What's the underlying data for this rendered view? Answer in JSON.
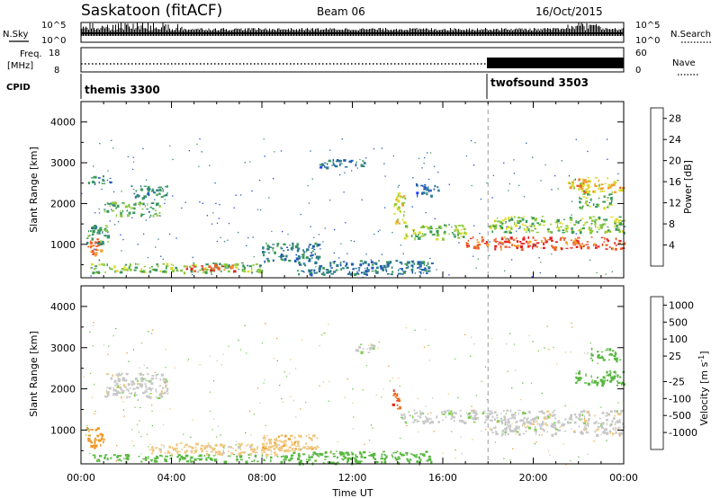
{
  "header": {
    "station": "Saskatoon (fitACF)",
    "beam": "Beam 06",
    "date": "16/Oct/2015"
  },
  "strip_labels": {
    "nsky": "N.Sky",
    "nsky_ticks": [
      "10^5",
      "10^0"
    ],
    "nsearch": "N.Search",
    "nsearch_ticks": [
      "10^5",
      "10^0"
    ],
    "freq_line1": "Freq.",
    "freq_line2": "[MHz]",
    "freq_ticks": [
      "18",
      "8"
    ],
    "nave": "Nave",
    "nave_ticks": [
      "60",
      "0"
    ],
    "cpid": "CPID",
    "cpid_segments": [
      {
        "name": "themis 3300",
        "start_hour": 0,
        "end_hour": 18.0
      },
      {
        "name": "twofsound 3503",
        "start_hour": 18.0,
        "end_hour": 24
      }
    ]
  },
  "colors": {
    "power_scale": [
      "#1e3cff",
      "#1e5ab4",
      "#2e7a8c",
      "#3c9a5c",
      "#8cc83c",
      "#dcdc28",
      "#f0a028",
      "#f06428",
      "#e61e1e"
    ],
    "velocity_scale": [
      "#2050c8",
      "#3c8c3c",
      "#58b840",
      "#7ad04a",
      "#c8c8c8",
      "#f0c880",
      "#f09a28",
      "#f06414",
      "#e62814"
    ]
  },
  "chart_data": [
    {
      "type": "heatmap",
      "title": "",
      "xlabel": "",
      "ylabel": "Slant Range [km]",
      "xlim": [
        0,
        24
      ],
      "ylim": [
        180,
        4500
      ],
      "x_ticks": [
        "00:00",
        "04:00",
        "08:00",
        "12:00",
        "16:00",
        "20:00",
        "00:00"
      ],
      "y_ticks": [
        1000,
        2000,
        3000,
        4000
      ],
      "colorbar": {
        "label": "Power [dB]",
        "ticks": [
          4,
          8,
          12,
          16,
          20,
          24,
          28
        ],
        "range": [
          0,
          30
        ]
      },
      "regions": [
        {
          "t0": 0.2,
          "t1": 1.0,
          "r0": 750,
          "r1": 1150,
          "value": 24
        },
        {
          "t0": 0.4,
          "t1": 8.0,
          "r0": 320,
          "r1": 560,
          "value": 14
        },
        {
          "t0": 4.5,
          "t1": 6.8,
          "r0": 360,
          "r1": 520,
          "value": 26
        },
        {
          "t0": 1.0,
          "t1": 3.5,
          "r0": 1700,
          "r1": 2050,
          "value": 12
        },
        {
          "t0": 2.2,
          "t1": 3.8,
          "r0": 2150,
          "r1": 2450,
          "value": 10
        },
        {
          "t0": 0.3,
          "t1": 1.3,
          "r0": 2500,
          "r1": 2700,
          "value": 9
        },
        {
          "t0": 0.2,
          "t1": 1.2,
          "r0": 1000,
          "r1": 1500,
          "value": 11
        },
        {
          "t0": 8.0,
          "t1": 10.5,
          "r0": 600,
          "r1": 1050,
          "value": 9
        },
        {
          "t0": 9.5,
          "t1": 15.5,
          "r0": 280,
          "r1": 620,
          "value": 8
        },
        {
          "t0": 13.8,
          "t1": 14.3,
          "r0": 1500,
          "r1": 2300,
          "value": 18
        },
        {
          "t0": 14.2,
          "t1": 17.0,
          "r0": 1150,
          "r1": 1500,
          "value": 14
        },
        {
          "t0": 17.0,
          "t1": 24.0,
          "r0": 900,
          "r1": 1200,
          "value": 26
        },
        {
          "t0": 18.0,
          "t1": 24.0,
          "r0": 1300,
          "r1": 1700,
          "value": 15
        },
        {
          "t0": 21.5,
          "t1": 24.0,
          "r0": 2300,
          "r1": 2650,
          "value": 20
        },
        {
          "t0": 22.0,
          "t1": 23.5,
          "r0": 1900,
          "r1": 2250,
          "value": 14
        },
        {
          "t0": 10.5,
          "t1": 12.5,
          "r0": 2900,
          "r1": 3100,
          "value": 7
        },
        {
          "t0": 14.8,
          "t1": 15.8,
          "r0": 2200,
          "r1": 2500,
          "value": 6
        }
      ]
    },
    {
      "type": "heatmap",
      "title": "",
      "xlabel": "Time UT",
      "ylabel": "Slant Range [km]",
      "xlim": [
        0,
        24
      ],
      "ylim": [
        180,
        4500
      ],
      "x_ticks": [
        "00:00",
        "04:00",
        "08:00",
        "12:00",
        "16:00",
        "20:00",
        "00:00"
      ],
      "y_ticks": [
        1000,
        2000,
        3000,
        4000
      ],
      "colorbar": {
        "label": "Velocity [m s^-1]",
        "ticks": [
          1000,
          500,
          100,
          25,
          -25,
          -100,
          -500,
          -1000
        ]
      },
      "regions": [
        {
          "t0": 1.0,
          "t1": 3.8,
          "r0": 1800,
          "r1": 2400,
          "value": 0
        },
        {
          "t0": 0.2,
          "t1": 1.0,
          "r0": 600,
          "r1": 1100,
          "value": -150
        },
        {
          "t0": 0.5,
          "t1": 9.0,
          "r0": 250,
          "r1": 420,
          "value": 200
        },
        {
          "t0": 3.0,
          "t1": 9.5,
          "r0": 420,
          "r1": 700,
          "value": -50
        },
        {
          "t0": 9.0,
          "t1": 15.5,
          "r0": 200,
          "r1": 500,
          "value": 150
        },
        {
          "t0": 8.0,
          "t1": 10.5,
          "r0": 550,
          "r1": 900,
          "value": -80
        },
        {
          "t0": 13.7,
          "t1": 14.1,
          "r0": 1500,
          "r1": 2000,
          "value": -800
        },
        {
          "t0": 14.1,
          "t1": 18.0,
          "r0": 1200,
          "r1": 1500,
          "value": 0
        },
        {
          "t0": 18.0,
          "t1": 24.0,
          "r0": 900,
          "r1": 1500,
          "value": 0
        },
        {
          "t0": 21.8,
          "t1": 24.0,
          "r0": 2100,
          "r1": 2450,
          "value": 200
        },
        {
          "t0": 22.5,
          "t1": 23.8,
          "r0": 2700,
          "r1": 3000,
          "value": 150
        },
        {
          "t0": 12.0,
          "t1": 13.0,
          "r0": 2900,
          "r1": 3100,
          "value": 0
        }
      ]
    }
  ]
}
